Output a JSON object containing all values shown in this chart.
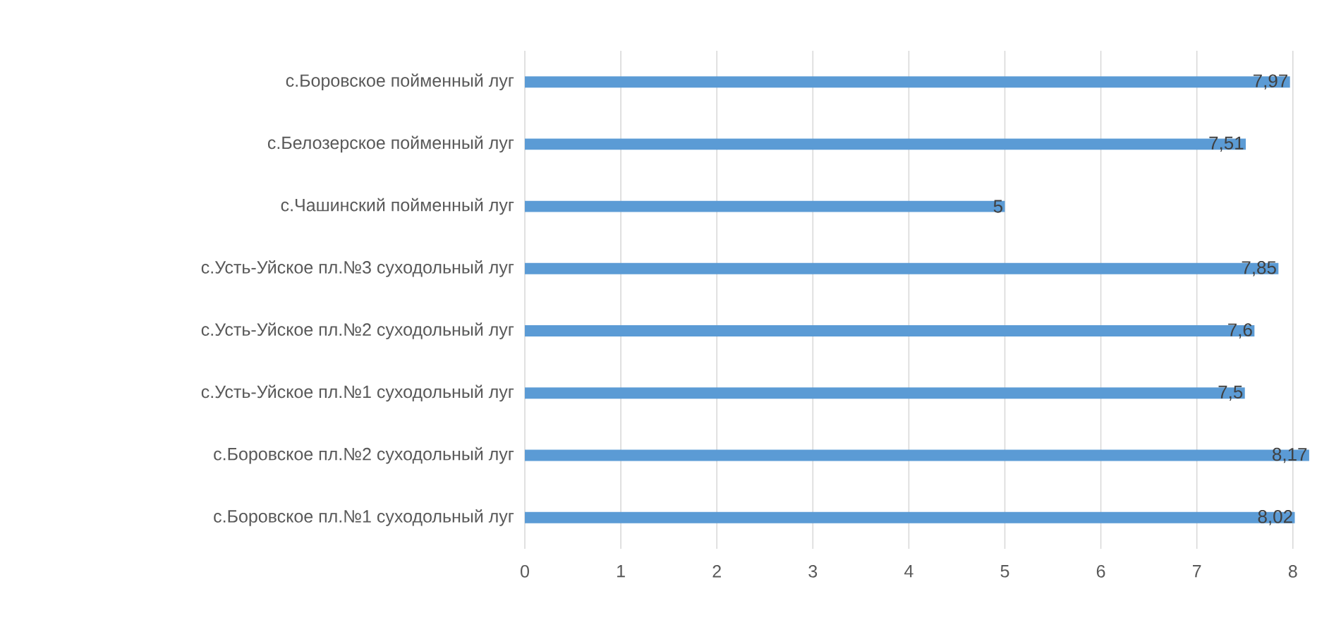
{
  "chart_data": {
    "type": "bar",
    "orientation": "horizontal",
    "categories": [
      "с.Боровское пойменный луг",
      "с.Белозерское пойменный луг",
      "с.Чашинский пойменный луг",
      "с.Усть-Уйское пл.№3 суходольный луг",
      "с.Усть-Уйское пл.№2 суходольный луг",
      "с.Усть-Уйское пл.№1 суходольный луг",
      "с.Боровское пл.№2 суходольный луг",
      "с.Боровское пл.№1 суходольный луг"
    ],
    "values": [
      7.97,
      7.51,
      5,
      7.85,
      7.6,
      7.5,
      8.17,
      8.02
    ],
    "value_labels": [
      "7,97",
      "7,51",
      "5",
      "7,85",
      "7,6",
      "7,5",
      "8,17",
      "8,02"
    ],
    "color": "#5b9bd5",
    "xlim": [
      0,
      8.2
    ],
    "xticks": [
      0,
      1,
      2,
      3,
      4,
      5,
      6,
      7,
      8
    ],
    "grid": "x"
  }
}
